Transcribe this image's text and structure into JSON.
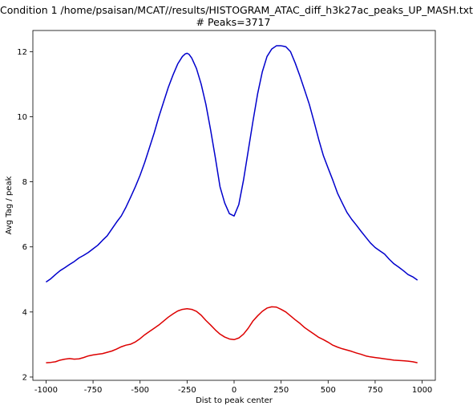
{
  "chart_data": {
    "type": "line",
    "title": "Condition 1 /home/psaisan/MCAT//results/HISTOGRAM_ATAC_diff_h3k27ac_peaks_UP_MASH.txt",
    "subtitle": "# Peaks=3717",
    "xlabel": "Dist to peak center",
    "ylabel": "Avg Tag / peak",
    "xlim": [
      -1070,
      1070
    ],
    "ylim": [
      1.9,
      12.65
    ],
    "x_ticks": [
      -1000,
      -750,
      -500,
      -250,
      0,
      250,
      500,
      750,
      1000
    ],
    "y_ticks": [
      2,
      4,
      6,
      8,
      10,
      12
    ],
    "grid": false,
    "legend": "none",
    "series": [
      {
        "color": "#0000cc",
        "x": [
          -1000,
          -975,
          -950,
          -925,
          -900,
          -875,
          -850,
          -825,
          -800,
          -775,
          -750,
          -725,
          -700,
          -675,
          -650,
          -625,
          -600,
          -575,
          -550,
          -525,
          -500,
          -475,
          -450,
          -425,
          -400,
          -375,
          -350,
          -325,
          -300,
          -275,
          -260,
          -250,
          -240,
          -225,
          -200,
          -175,
          -150,
          -125,
          -100,
          -75,
          -50,
          -25,
          0,
          25,
          50,
          75,
          100,
          125,
          150,
          175,
          200,
          225,
          250,
          260,
          275,
          300,
          325,
          350,
          375,
          400,
          425,
          450,
          475,
          500,
          525,
          550,
          575,
          600,
          625,
          650,
          675,
          700,
          725,
          750,
          775,
          800,
          825,
          850,
          875,
          900,
          925,
          950,
          975
        ],
        "values": [
          4.92,
          5.02,
          5.15,
          5.27,
          5.36,
          5.46,
          5.55,
          5.66,
          5.74,
          5.83,
          5.94,
          6.05,
          6.2,
          6.34,
          6.55,
          6.76,
          6.95,
          7.22,
          7.53,
          7.85,
          8.2,
          8.6,
          9.05,
          9.5,
          10.0,
          10.45,
          10.9,
          11.28,
          11.62,
          11.85,
          11.93,
          11.95,
          11.92,
          11.8,
          11.48,
          11.0,
          10.38,
          9.6,
          8.75,
          7.85,
          7.35,
          7.02,
          6.95,
          7.3,
          8.05,
          8.95,
          9.85,
          10.7,
          11.38,
          11.85,
          12.08,
          12.18,
          12.18,
          12.17,
          12.15,
          12.0,
          11.65,
          11.25,
          10.82,
          10.38,
          9.85,
          9.3,
          8.8,
          8.42,
          8.05,
          7.65,
          7.35,
          7.06,
          6.85,
          6.67,
          6.48,
          6.3,
          6.12,
          5.98,
          5.88,
          5.78,
          5.62,
          5.48,
          5.38,
          5.27,
          5.15,
          5.08,
          4.98
        ]
      },
      {
        "color": "#dd0000",
        "x": [
          -1000,
          -975,
          -950,
          -925,
          -900,
          -875,
          -850,
          -825,
          -800,
          -775,
          -750,
          -725,
          -700,
          -675,
          -650,
          -625,
          -600,
          -575,
          -550,
          -525,
          -500,
          -475,
          -450,
          -425,
          -400,
          -375,
          -350,
          -325,
          -300,
          -275,
          -250,
          -225,
          -200,
          -175,
          -150,
          -125,
          -100,
          -75,
          -50,
          -25,
          0,
          25,
          50,
          75,
          100,
          125,
          150,
          175,
          200,
          225,
          250,
          275,
          300,
          325,
          350,
          375,
          400,
          425,
          450,
          475,
          500,
          525,
          550,
          575,
          600,
          625,
          650,
          675,
          700,
          725,
          750,
          775,
          800,
          825,
          850,
          875,
          900,
          925,
          950,
          975
        ],
        "values": [
          2.44,
          2.45,
          2.47,
          2.52,
          2.55,
          2.57,
          2.55,
          2.56,
          2.6,
          2.65,
          2.68,
          2.7,
          2.72,
          2.76,
          2.8,
          2.86,
          2.93,
          2.98,
          3.01,
          3.08,
          3.18,
          3.3,
          3.4,
          3.5,
          3.6,
          3.72,
          3.84,
          3.94,
          4.03,
          4.08,
          4.1,
          4.08,
          4.02,
          3.9,
          3.74,
          3.6,
          3.45,
          3.32,
          3.23,
          3.17,
          3.15,
          3.2,
          3.32,
          3.5,
          3.72,
          3.88,
          4.02,
          4.12,
          4.16,
          4.15,
          4.08,
          4.0,
          3.88,
          3.76,
          3.65,
          3.52,
          3.42,
          3.32,
          3.22,
          3.15,
          3.07,
          2.98,
          2.92,
          2.87,
          2.83,
          2.79,
          2.74,
          2.7,
          2.65,
          2.62,
          2.6,
          2.58,
          2.56,
          2.54,
          2.52,
          2.51,
          2.5,
          2.49,
          2.47,
          2.44
        ]
      }
    ]
  }
}
